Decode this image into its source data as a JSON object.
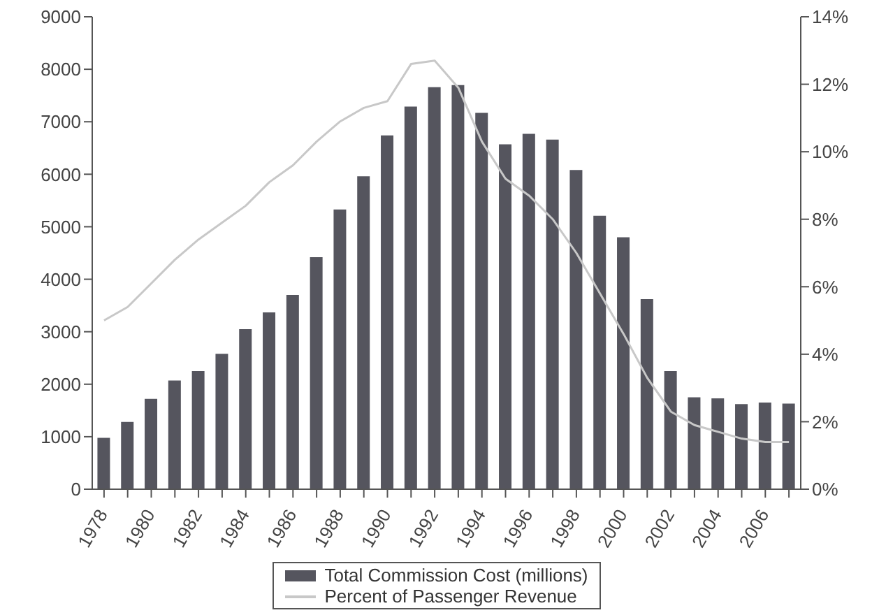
{
  "chart_data": {
    "type": "bar",
    "categories": [
      "1978",
      null,
      "1980",
      null,
      "1982",
      null,
      "1984",
      null,
      "1986",
      null,
      "1988",
      null,
      "1990",
      null,
      "1992",
      null,
      "1994",
      null,
      "1996",
      null,
      "1998",
      null,
      "2000",
      null,
      "2002",
      null,
      "2004",
      null,
      "2006",
      null
    ],
    "series": [
      {
        "name": "Total Commission Cost (millions)",
        "color": "#55555e",
        "values": [
          980,
          1280,
          1720,
          2070,
          2250,
          2580,
          3050,
          3370,
          3700,
          4420,
          5330,
          5960,
          6740,
          7290,
          7660,
          7700,
          7170,
          6570,
          6770,
          6660,
          6080,
          5210,
          4800,
          3620,
          2250,
          1750,
          1730,
          1620,
          1650,
          1630
        ]
      },
      {
        "name": "Percent of Passenger Revenue",
        "type": "line",
        "axis": "y2",
        "color": "#c8c8c8",
        "values": [
          5.0,
          5.4,
          6.1,
          6.8,
          7.4,
          7.9,
          8.4,
          9.1,
          9.6,
          10.3,
          10.9,
          11.3,
          11.5,
          12.6,
          12.7,
          11.9,
          10.3,
          9.2,
          8.7,
          8.0,
          7.0,
          5.8,
          4.6,
          3.3,
          2.3,
          1.9,
          1.7,
          1.5,
          1.4,
          1.4
        ]
      }
    ],
    "ylim": [
      0,
      9000
    ],
    "yticks": [
      0,
      1000,
      2000,
      3000,
      4000,
      5000,
      6000,
      7000,
      8000,
      9000
    ],
    "y2lim": [
      0,
      14
    ],
    "y2ticks": [
      {
        "value": 0,
        "label": "0%"
      },
      {
        "value": 2,
        "label": "2%"
      },
      {
        "value": 4,
        "label": "4%"
      },
      {
        "value": 6,
        "label": "6%"
      },
      {
        "value": 8,
        "label": "8%"
      },
      {
        "value": 10,
        "label": "10%"
      },
      {
        "value": 12,
        "label": "12%"
      },
      {
        "value": 14,
        "label": "14%"
      }
    ],
    "grid": false,
    "legend": "bottom",
    "marker": "none",
    "line_style": "solid"
  }
}
